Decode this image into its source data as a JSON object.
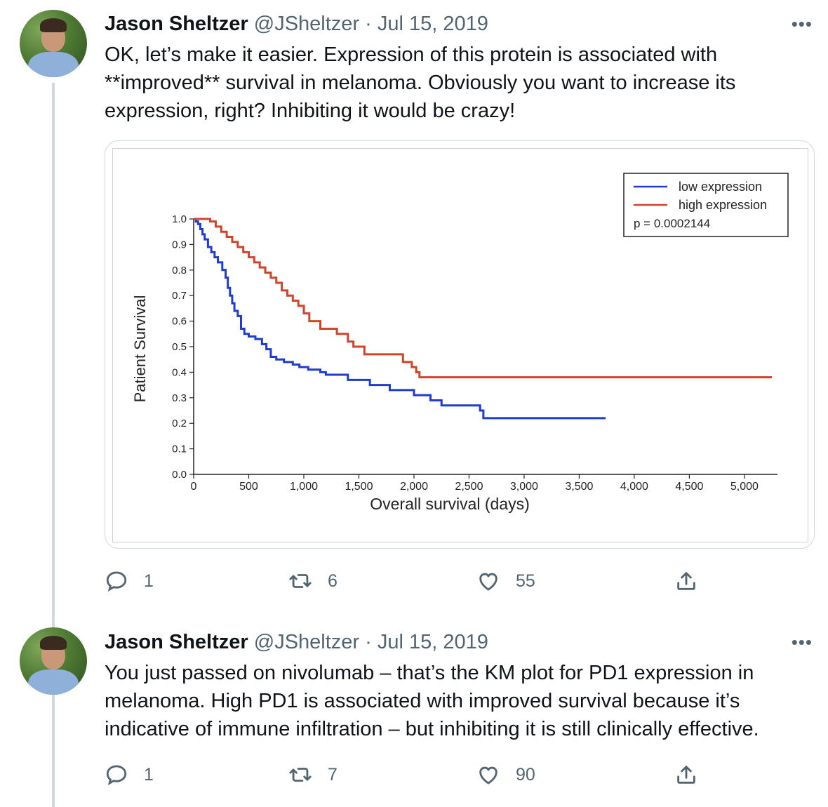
{
  "tweets": [
    {
      "name": "Jason Sheltzer",
      "handle": "@JSheltzer",
      "separator": "·",
      "date": "Jul 15, 2019",
      "more": "•••",
      "lines": [
        "OK, let’s make it easier.  Expression of this protein is associated with",
        "**improved** survival in melanoma.  Obviously you want to increase its",
        "expression, right? Inhibiting it would be crazy!"
      ],
      "replies": "1",
      "retweets": "6",
      "likes": "55"
    },
    {
      "name": "Jason Sheltzer",
      "handle": "@JSheltzer",
      "separator": "·",
      "date": "Jul 15, 2019",
      "more": "•••",
      "lines": [
        "You just passed on nivolumab – that’s the KM plot for PD1 expression in",
        "melanoma. High PD1 is associated with improved survival because it’s",
        "indicative of immune infiltration – but inhibiting it is still clinically effective."
      ],
      "replies": "1",
      "retweets": "7",
      "likes": "90"
    }
  ],
  "icons": {
    "reply": "reply-icon",
    "retweet": "retweet-icon",
    "like": "heart-icon",
    "share": "share-icon"
  },
  "colors": {
    "text": "#0f1419",
    "secondary": "#536471",
    "border": "#cfd9de",
    "low": "#1f3bd0",
    "high": "#d0452a"
  },
  "chart_data": {
    "type": "line",
    "title": "",
    "xlabel": "Overall survival (days)",
    "ylabel": "Patient Survival",
    "xlim": [
      0,
      5300
    ],
    "ylim": [
      0,
      1.0
    ],
    "xticks": [
      0,
      500,
      1000,
      1500,
      2000,
      2500,
      3000,
      3500,
      4000,
      4500,
      5000
    ],
    "xtick_labels": [
      "0",
      "500",
      "1,000",
      "1,500",
      "2,000",
      "2,500",
      "3,000",
      "3,500",
      "4,000",
      "4,500",
      "5,000"
    ],
    "yticks": [
      0.0,
      0.1,
      0.2,
      0.3,
      0.4,
      0.5,
      0.6,
      0.7,
      0.8,
      0.9,
      1.0
    ],
    "ytick_labels": [
      "0.0",
      "0.1",
      "0.2",
      "0.3",
      "0.4",
      "0.5",
      "0.6",
      "0.7",
      "0.8",
      "0.9",
      "1.0"
    ],
    "legend": {
      "position": "top-right",
      "annotation": "p = 0.0002144"
    },
    "series": [
      {
        "name": "low expression",
        "color": "#1f3bd0",
        "step": true,
        "x": [
          0,
          20,
          40,
          60,
          80,
          100,
          130,
          160,
          190,
          220,
          260,
          290,
          310,
          330,
          350,
          370,
          400,
          430,
          460,
          500,
          560,
          620,
          660,
          700,
          750,
          820,
          900,
          960,
          1040,
          1150,
          1200,
          1400,
          1600,
          1780,
          2000,
          2150,
          2250,
          2450,
          2600,
          2630,
          3000,
          3500,
          3740
        ],
        "y": [
          1.0,
          0.99,
          0.98,
          0.96,
          0.94,
          0.92,
          0.89,
          0.87,
          0.85,
          0.83,
          0.8,
          0.77,
          0.73,
          0.7,
          0.67,
          0.64,
          0.62,
          0.57,
          0.55,
          0.54,
          0.53,
          0.51,
          0.49,
          0.46,
          0.45,
          0.44,
          0.43,
          0.42,
          0.41,
          0.4,
          0.39,
          0.37,
          0.35,
          0.33,
          0.31,
          0.29,
          0.27,
          0.27,
          0.25,
          0.22,
          0.22,
          0.22,
          0.22
        ]
      },
      {
        "name": "high expression",
        "color": "#d0452a",
        "step": true,
        "x": [
          0,
          150,
          200,
          250,
          300,
          350,
          400,
          450,
          500,
          550,
          600,
          650,
          700,
          750,
          800,
          850,
          900,
          950,
          1000,
          1050,
          1150,
          1300,
          1400,
          1450,
          1550,
          1900,
          1980,
          2020,
          2050,
          2400,
          3000,
          4000,
          5250
        ],
        "y": [
          1.0,
          0.99,
          0.97,
          0.95,
          0.93,
          0.91,
          0.89,
          0.87,
          0.85,
          0.83,
          0.81,
          0.79,
          0.77,
          0.75,
          0.72,
          0.7,
          0.68,
          0.66,
          0.63,
          0.6,
          0.57,
          0.55,
          0.52,
          0.5,
          0.47,
          0.44,
          0.42,
          0.4,
          0.38,
          0.38,
          0.38,
          0.38,
          0.38
        ]
      }
    ]
  }
}
